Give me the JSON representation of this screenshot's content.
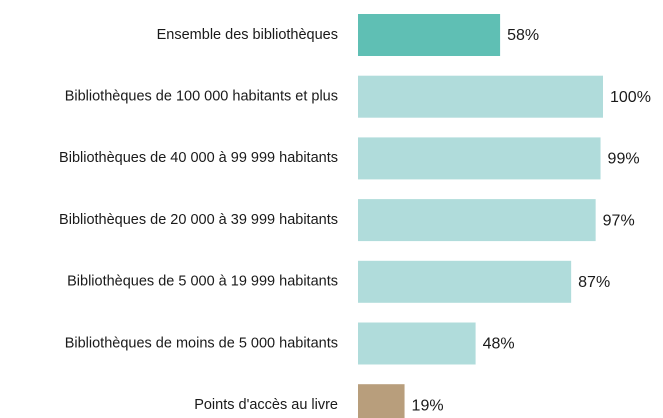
{
  "chart_data": {
    "type": "hbar",
    "categories": [
      "Ensemble des bibliothèques",
      "Bibliothèques de 100 000 habitants et plus",
      "Bibliothèques de 40 000 à 99 999 habitants",
      "Bibliothèques de 20 000 à 39 999 habitants",
      "Bibliothèques de 5 000 à 19 999 habitants",
      "Bibliothèques de moins de 5 000 habitants",
      "Points d'accès au livre"
    ],
    "values": [
      58,
      100,
      99,
      97,
      87,
      48,
      19
    ],
    "value_labels": [
      "58%",
      "100%",
      "99%",
      "97%",
      "87%",
      "48%",
      "19%"
    ],
    "colors": [
      "#5fbfb4",
      "#b0dcdb",
      "#b0dcdb",
      "#b0dcdb",
      "#b0dcdb",
      "#b0dcdb",
      "#b89e7c"
    ]
  }
}
